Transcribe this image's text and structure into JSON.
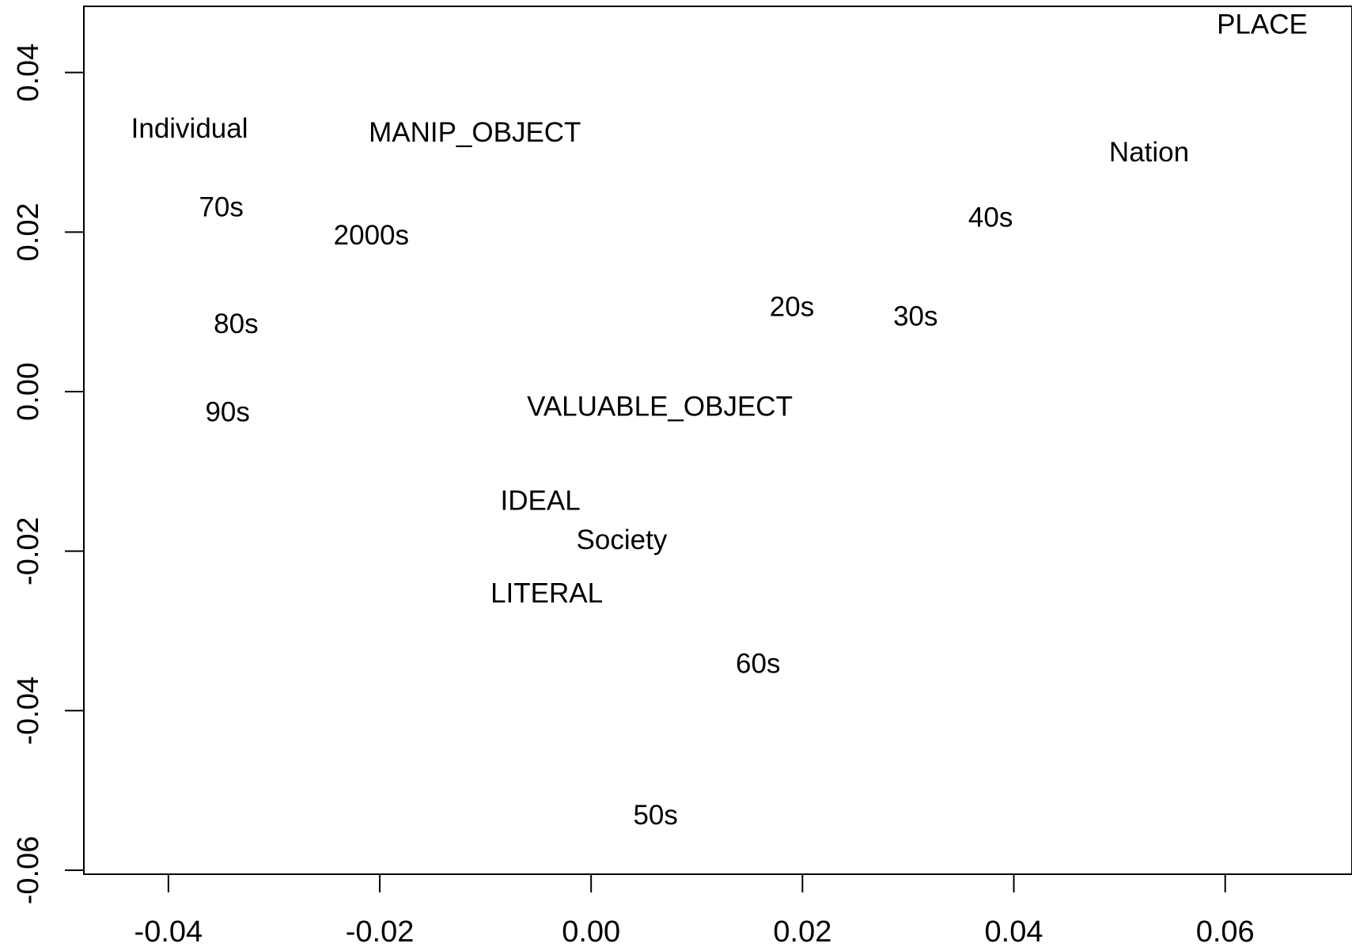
{
  "chart_data": {
    "type": "scatter",
    "title": "",
    "xlabel": "",
    "ylabel": "",
    "xlim": [
      -0.048,
      0.072
    ],
    "ylim": [
      -0.0605,
      0.0483
    ],
    "grid": false,
    "x_ticks": [
      "-0.04",
      "-0.02",
      "0.00",
      "0.02",
      "0.04",
      "0.06"
    ],
    "y_ticks": [
      "-0.06",
      "-0.04",
      "-0.02",
      "0.00",
      "0.02",
      "0.04"
    ],
    "points": [
      {
        "label": "PLACE",
        "x": 0.0635,
        "y": 0.046
      },
      {
        "label": "Individual",
        "x": -0.038,
        "y": 0.033
      },
      {
        "label": "MANIP_OBJECT",
        "x": -0.011,
        "y": 0.0325
      },
      {
        "label": "Nation",
        "x": 0.0528,
        "y": 0.03
      },
      {
        "label": "70s",
        "x": -0.035,
        "y": 0.0231
      },
      {
        "label": "2000s",
        "x": -0.0208,
        "y": 0.0196
      },
      {
        "label": "40s",
        "x": 0.0378,
        "y": 0.0218
      },
      {
        "label": "20s",
        "x": 0.019,
        "y": 0.0106
      },
      {
        "label": "30s",
        "x": 0.0307,
        "y": 0.0094
      },
      {
        "label": "80s",
        "x": -0.0336,
        "y": 0.0085
      },
      {
        "label": "90s",
        "x": -0.0344,
        "y": -0.0026
      },
      {
        "label": "VALUABLE_OBJECT",
        "x": 0.0065,
        "y": -0.0019
      },
      {
        "label": "IDEAL",
        "x": -0.0048,
        "y": -0.0137
      },
      {
        "label": "Society",
        "x": 0.0029,
        "y": -0.0186
      },
      {
        "label": "LITERAL",
        "x": -0.0042,
        "y": -0.0253
      },
      {
        "label": "60s",
        "x": 0.0158,
        "y": -0.0341
      },
      {
        "label": "50s",
        "x": 0.0061,
        "y": -0.0531
      }
    ]
  }
}
